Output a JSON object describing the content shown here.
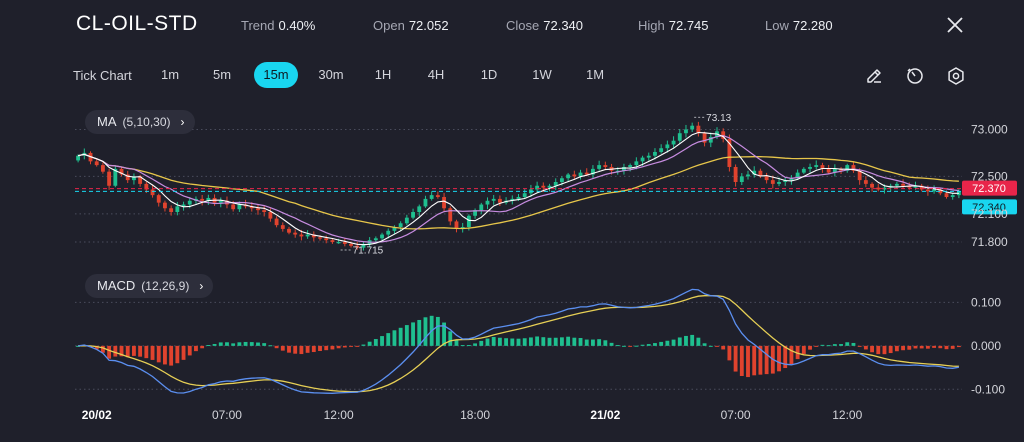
{
  "header": {
    "symbol": "CL-OIL-STD",
    "stats": [
      {
        "label": "Trend",
        "value": "0.40%"
      },
      {
        "label": "Open",
        "value": "72.052"
      },
      {
        "label": "Close",
        "value": "72.340"
      },
      {
        "label": "High",
        "value": "72.745"
      },
      {
        "label": "Low",
        "value": "72.280"
      }
    ],
    "close_icon": "close-icon"
  },
  "toolbar": {
    "tick_chart_label": "Tick Chart",
    "timeframes": [
      "1m",
      "5m",
      "15m",
      "30m",
      "1H",
      "4H",
      "1D",
      "1W",
      "1M"
    ],
    "active_timeframe": "15m",
    "tools": [
      "draw-icon",
      "timer-icon",
      "settings-icon"
    ]
  },
  "indicators": {
    "ma": {
      "name": "MA",
      "params": "(5,10,30)"
    },
    "macd": {
      "name": "MACD",
      "params": "(12,26,9)"
    }
  },
  "colors": {
    "up": "#1fbf8f",
    "down": "#e0432e",
    "ma5": "#ffffff",
    "ma10": "#c78ce0",
    "ma30": "#e7c64a",
    "macd": "#5b8ff0",
    "signal": "#e6cf55",
    "accent": "#19d6f0",
    "current_price_tag": "#e8254a",
    "close_price_tag": "#19d6f0"
  },
  "chart_data": [
    {
      "type": "candlestick",
      "title": "",
      "price_ticks": [
        "73.000",
        "72.500",
        "72.100",
        "71.800"
      ],
      "price_tick_values": [
        73.0,
        72.5,
        72.1,
        71.8
      ],
      "ylim": [
        71.63,
        73.25
      ],
      "current_price_tag": "72.370",
      "close_price_tag": "72.340",
      "annotations": {
        "high_label": "73.13",
        "high_value": 73.13,
        "low_label": "71.715",
        "low_value": 71.715
      },
      "x_labels": [
        "20/02",
        "07:00",
        "12:00",
        "18:00",
        "21/02",
        "07:00",
        "12:00"
      ],
      "grid": true,
      "series_closes": [
        72.72,
        72.75,
        72.66,
        72.62,
        72.55,
        72.4,
        72.58,
        72.52,
        72.46,
        72.5,
        72.42,
        72.36,
        72.3,
        72.22,
        72.16,
        72.12,
        72.18,
        72.2,
        72.24,
        72.26,
        72.24,
        72.27,
        72.22,
        72.24,
        72.2,
        72.15,
        72.2,
        72.18,
        72.16,
        72.14,
        72.12,
        72.05,
        71.98,
        71.94,
        71.9,
        71.88,
        71.86,
        71.88,
        71.85,
        71.84,
        71.82,
        71.8,
        71.8,
        71.78,
        71.76,
        71.74,
        71.78,
        71.82,
        71.84,
        71.88,
        71.92,
        71.96,
        72.0,
        72.06,
        72.12,
        72.18,
        72.26,
        72.3,
        72.28,
        72.16,
        72.02,
        71.94,
        71.96,
        72.08,
        72.14,
        72.2,
        72.24,
        72.26,
        72.22,
        72.24,
        72.26,
        72.28,
        72.32,
        72.36,
        72.4,
        72.38,
        72.4,
        72.44,
        72.48,
        72.52,
        72.5,
        72.54,
        72.52,
        72.58,
        72.62,
        72.6,
        72.56,
        72.56,
        72.6,
        72.62,
        72.66,
        72.7,
        72.72,
        72.76,
        72.8,
        72.84,
        72.88,
        72.96,
        73.0,
        73.04,
        72.96,
        72.86,
        72.92,
        72.98,
        72.9,
        72.6,
        72.44,
        72.5,
        72.52,
        72.56,
        72.5,
        72.46,
        72.42,
        72.44,
        72.46,
        72.48,
        72.54,
        72.58,
        72.6,
        72.62,
        72.58,
        72.54,
        72.58,
        72.56,
        72.62,
        72.56,
        72.46,
        72.42,
        72.38,
        72.36,
        72.38,
        72.4,
        72.42,
        72.4,
        72.38,
        72.4,
        72.36,
        72.34,
        72.36,
        72.32,
        72.28,
        72.3,
        72.34
      ]
    },
    {
      "type": "macd",
      "params": "(12,26,9)",
      "yticks": [
        "0.100",
        "0.000",
        "-0.100"
      ],
      "ytick_values": [
        0.1,
        0.0,
        -0.1
      ],
      "ylim": [
        -0.12,
        0.17
      ]
    }
  ]
}
